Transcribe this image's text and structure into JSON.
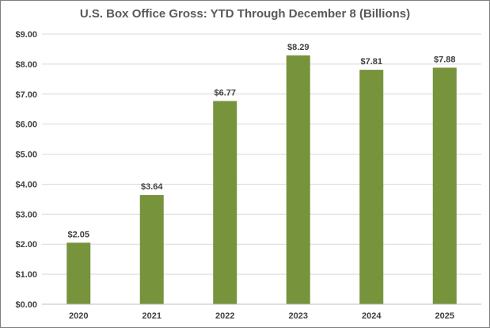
{
  "chart_data": {
    "type": "bar",
    "title": "U.S. Box Office Gross: YTD Through December 8 (Billions)",
    "categories": [
      "2020",
      "2021",
      "2022",
      "2023",
      "2024",
      "2025"
    ],
    "values": [
      2.05,
      3.64,
      6.77,
      8.29,
      7.81,
      7.88
    ],
    "data_labels": [
      "$2.05",
      "$3.64",
      "$6.77",
      "$8.29",
      "$7.81",
      "$7.88"
    ],
    "y_ticks": [
      0,
      1,
      2,
      3,
      4,
      5,
      6,
      7,
      8,
      9
    ],
    "y_tick_labels": [
      "$0.00",
      "$1.00",
      "$2.00",
      "$3.00",
      "$4.00",
      "$5.00",
      "$6.00",
      "$7.00",
      "$8.00",
      "$9.00"
    ],
    "ylim": [
      0,
      9
    ],
    "xlabel": "",
    "ylabel": "",
    "grid": true,
    "legend": "none",
    "colors": {
      "bar": "#77933c",
      "grid": "#d9d9d9",
      "axis": "#bfbfbf"
    }
  }
}
